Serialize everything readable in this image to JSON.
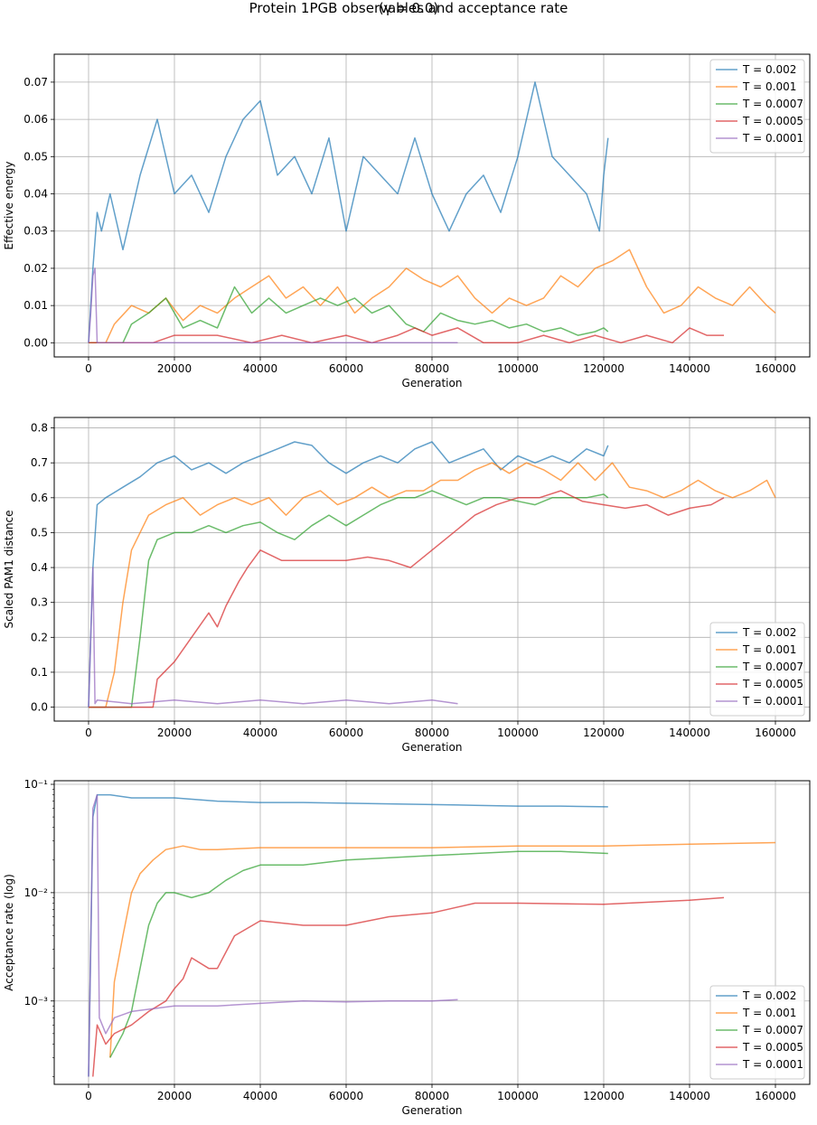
{
  "figure": {
    "title": "Protein 1PGB observables and acceptance rate",
    "subtitle": "(γ = 0.0)"
  },
  "colors": {
    "T = 0.002": "#1f77b4",
    "T = 0.001": "#ff7f0e",
    "T = 0.0007": "#2ca02c",
    "T = 0.0005": "#d62728",
    "T = 0.0001": "#9467bd"
  },
  "chart_data": [
    {
      "type": "line",
      "title": "",
      "xlabel": "Generation",
      "ylabel": "Effective energy",
      "xlim": [
        -8000,
        168000
      ],
      "ylim": [
        -0.0038,
        0.0775
      ],
      "yscale": "linear",
      "grid": true,
      "legend": "top-right",
      "x_ticks": [
        "0",
        "20000",
        "40000",
        "60000",
        "80000",
        "100000",
        "120000",
        "140000",
        "160000"
      ],
      "y_ticks": [
        "0.00",
        "0.01",
        "0.02",
        "0.03",
        "0.04",
        "0.05",
        "0.06",
        "0.07"
      ],
      "series": [
        {
          "name": "T = 0.002",
          "x": [
            0,
            1000,
            2000,
            3000,
            5000,
            8000,
            12000,
            16000,
            20000,
            24000,
            28000,
            32000,
            36000,
            40000,
            44000,
            48000,
            52000,
            56000,
            60000,
            64000,
            68000,
            72000,
            76000,
            80000,
            84000,
            88000,
            92000,
            96000,
            100000,
            104000,
            108000,
            112000,
            116000,
            119000,
            120000,
            121000
          ],
          "y": [
            0.0,
            0.02,
            0.035,
            0.03,
            0.04,
            0.025,
            0.045,
            0.06,
            0.04,
            0.045,
            0.035,
            0.05,
            0.06,
            0.065,
            0.045,
            0.05,
            0.04,
            0.055,
            0.03,
            0.05,
            0.045,
            0.04,
            0.055,
            0.04,
            0.03,
            0.04,
            0.045,
            0.035,
            0.05,
            0.07,
            0.05,
            0.045,
            0.04,
            0.03,
            0.045,
            0.055
          ]
        },
        {
          "name": "T = 0.001",
          "x": [
            0,
            4000,
            6000,
            10000,
            14000,
            18000,
            22000,
            26000,
            30000,
            34000,
            38000,
            42000,
            46000,
            50000,
            54000,
            58000,
            62000,
            66000,
            70000,
            74000,
            78000,
            82000,
            86000,
            90000,
            94000,
            98000,
            102000,
            106000,
            110000,
            114000,
            118000,
            122000,
            126000,
            130000,
            134000,
            138000,
            142000,
            146000,
            150000,
            154000,
            158000,
            160000
          ],
          "y": [
            0.0,
            0.0,
            0.005,
            0.01,
            0.008,
            0.012,
            0.006,
            0.01,
            0.008,
            0.012,
            0.015,
            0.018,
            0.012,
            0.015,
            0.01,
            0.015,
            0.008,
            0.012,
            0.015,
            0.02,
            0.017,
            0.015,
            0.018,
            0.012,
            0.008,
            0.012,
            0.01,
            0.012,
            0.018,
            0.015,
            0.02,
            0.022,
            0.025,
            0.015,
            0.008,
            0.01,
            0.015,
            0.012,
            0.01,
            0.015,
            0.01,
            0.008
          ]
        },
        {
          "name": "T = 0.0007",
          "x": [
            0,
            8000,
            10000,
            14000,
            18000,
            22000,
            26000,
            30000,
            34000,
            38000,
            42000,
            46000,
            50000,
            54000,
            58000,
            62000,
            66000,
            70000,
            74000,
            78000,
            82000,
            86000,
            90000,
            94000,
            98000,
            102000,
            106000,
            110000,
            114000,
            118000,
            120000,
            121000
          ],
          "y": [
            0.0,
            0.0,
            0.005,
            0.008,
            0.012,
            0.004,
            0.006,
            0.004,
            0.015,
            0.008,
            0.012,
            0.008,
            0.01,
            0.012,
            0.01,
            0.012,
            0.008,
            0.01,
            0.005,
            0.003,
            0.008,
            0.006,
            0.005,
            0.006,
            0.004,
            0.005,
            0.003,
            0.004,
            0.002,
            0.003,
            0.004,
            0.003
          ]
        },
        {
          "name": "T = 0.0005",
          "x": [
            0,
            15000,
            20000,
            30000,
            38000,
            45000,
            52000,
            60000,
            66000,
            72000,
            76000,
            80000,
            86000,
            92000,
            100000,
            106000,
            112000,
            118000,
            124000,
            130000,
            136000,
            140000,
            144000,
            148000
          ],
          "y": [
            0.0,
            0.0,
            0.002,
            0.002,
            0.0,
            0.002,
            0.0,
            0.002,
            0.0,
            0.002,
            0.004,
            0.002,
            0.004,
            0.0,
            0.0,
            0.002,
            0.0,
            0.002,
            0.0,
            0.002,
            0.0,
            0.004,
            0.002,
            0.002
          ]
        },
        {
          "name": "T = 0.0001",
          "x": [
            0,
            500,
            1000,
            1500,
            2000,
            4000,
            86000
          ],
          "y": [
            0.0,
            0.008,
            0.018,
            0.02,
            0.0,
            0.0,
            0.0
          ]
        }
      ]
    },
    {
      "type": "line",
      "title": "",
      "xlabel": "Generation",
      "ylabel": "Scaled PAM1 distance",
      "xlim": [
        -8000,
        168000
      ],
      "ylim": [
        -0.04,
        0.83
      ],
      "yscale": "linear",
      "grid": true,
      "legend": "bottom-right",
      "x_ticks": [
        "0",
        "20000",
        "40000",
        "60000",
        "80000",
        "100000",
        "120000",
        "140000",
        "160000"
      ],
      "y_ticks": [
        "0.0",
        "0.1",
        "0.2",
        "0.3",
        "0.4",
        "0.5",
        "0.6",
        "0.7",
        "0.8"
      ],
      "series": [
        {
          "name": "T = 0.002",
          "x": [
            0,
            1000,
            2000,
            4000,
            8000,
            12000,
            16000,
            20000,
            24000,
            28000,
            32000,
            36000,
            40000,
            44000,
            48000,
            52000,
            56000,
            60000,
            64000,
            68000,
            72000,
            76000,
            80000,
            84000,
            88000,
            92000,
            96000,
            100000,
            104000,
            108000,
            112000,
            116000,
            120000,
            121000
          ],
          "y": [
            0.0,
            0.4,
            0.58,
            0.6,
            0.63,
            0.66,
            0.7,
            0.72,
            0.68,
            0.7,
            0.67,
            0.7,
            0.72,
            0.74,
            0.76,
            0.75,
            0.7,
            0.67,
            0.7,
            0.72,
            0.7,
            0.74,
            0.76,
            0.7,
            0.72,
            0.74,
            0.68,
            0.72,
            0.7,
            0.72,
            0.7,
            0.74,
            0.72,
            0.75
          ]
        },
        {
          "name": "T = 0.001",
          "x": [
            0,
            4000,
            6000,
            8000,
            10000,
            12000,
            14000,
            18000,
            22000,
            26000,
            30000,
            34000,
            38000,
            42000,
            46000,
            50000,
            54000,
            58000,
            62000,
            66000,
            70000,
            74000,
            78000,
            82000,
            86000,
            90000,
            94000,
            98000,
            102000,
            106000,
            110000,
            114000,
            118000,
            122000,
            126000,
            130000,
            134000,
            138000,
            142000,
            146000,
            150000,
            154000,
            158000,
            160000
          ],
          "y": [
            0.0,
            0.0,
            0.1,
            0.3,
            0.45,
            0.5,
            0.55,
            0.58,
            0.6,
            0.55,
            0.58,
            0.6,
            0.58,
            0.6,
            0.55,
            0.6,
            0.62,
            0.58,
            0.6,
            0.63,
            0.6,
            0.62,
            0.62,
            0.65,
            0.65,
            0.68,
            0.7,
            0.67,
            0.7,
            0.68,
            0.65,
            0.7,
            0.65,
            0.7,
            0.63,
            0.62,
            0.6,
            0.62,
            0.65,
            0.62,
            0.6,
            0.62,
            0.65,
            0.6
          ]
        },
        {
          "name": "T = 0.0007",
          "x": [
            0,
            10000,
            12000,
            14000,
            16000,
            20000,
            24000,
            28000,
            32000,
            36000,
            40000,
            44000,
            48000,
            52000,
            56000,
            60000,
            64000,
            68000,
            72000,
            76000,
            80000,
            84000,
            88000,
            92000,
            96000,
            100000,
            104000,
            108000,
            112000,
            116000,
            120000,
            121000
          ],
          "y": [
            0.0,
            0.0,
            0.2,
            0.42,
            0.48,
            0.5,
            0.5,
            0.52,
            0.5,
            0.52,
            0.53,
            0.5,
            0.48,
            0.52,
            0.55,
            0.52,
            0.55,
            0.58,
            0.6,
            0.6,
            0.62,
            0.6,
            0.58,
            0.6,
            0.6,
            0.59,
            0.58,
            0.6,
            0.6,
            0.6,
            0.61,
            0.6
          ]
        },
        {
          "name": "T = 0.0005",
          "x": [
            0,
            15000,
            16000,
            20000,
            24000,
            28000,
            30000,
            32000,
            35000,
            37000,
            40000,
            45000,
            50000,
            55000,
            60000,
            65000,
            70000,
            75000,
            80000,
            85000,
            90000,
            95000,
            100000,
            105000,
            110000,
            115000,
            120000,
            125000,
            130000,
            135000,
            140000,
            145000,
            148000
          ],
          "y": [
            0.0,
            0.0,
            0.08,
            0.13,
            0.2,
            0.27,
            0.23,
            0.29,
            0.36,
            0.4,
            0.45,
            0.42,
            0.42,
            0.42,
            0.42,
            0.43,
            0.42,
            0.4,
            0.45,
            0.5,
            0.55,
            0.58,
            0.6,
            0.6,
            0.62,
            0.59,
            0.58,
            0.57,
            0.58,
            0.55,
            0.57,
            0.58,
            0.6
          ]
        },
        {
          "name": "T = 0.0001",
          "x": [
            0,
            500,
            1000,
            1500,
            2000,
            10000,
            20000,
            30000,
            40000,
            50000,
            60000,
            70000,
            80000,
            86000
          ],
          "y": [
            0.0,
            0.2,
            0.4,
            0.01,
            0.02,
            0.01,
            0.02,
            0.01,
            0.02,
            0.01,
            0.02,
            0.01,
            0.02,
            0.01
          ]
        }
      ]
    },
    {
      "type": "line",
      "title": "",
      "xlabel": "Generation",
      "ylabel": "Acceptance rate (log)",
      "xlim": [
        -8000,
        168000
      ],
      "ylim": [
        0.00017,
        0.108
      ],
      "yscale": "log",
      "grid": true,
      "legend": "bottom-right",
      "x_ticks": [
        "0",
        "20000",
        "40000",
        "60000",
        "80000",
        "100000",
        "120000",
        "140000",
        "160000"
      ],
      "y_ticks": [
        "10⁻¹",
        "10⁻²",
        "10⁻³"
      ],
      "series": [
        {
          "name": "T = 0.002",
          "x": [
            0,
            1000,
            2000,
            5000,
            10000,
            20000,
            30000,
            40000,
            50000,
            60000,
            70000,
            80000,
            90000,
            100000,
            110000,
            121000
          ],
          "y": [
            0.0002,
            0.05,
            0.08,
            0.08,
            0.075,
            0.075,
            0.07,
            0.068,
            0.068,
            0.067,
            0.066,
            0.065,
            0.064,
            0.063,
            0.063,
            0.062
          ]
        },
        {
          "name": "T = 0.001",
          "x": [
            5000,
            6000,
            8000,
            10000,
            12000,
            15000,
            18000,
            22000,
            26000,
            30000,
            40000,
            50000,
            60000,
            80000,
            100000,
            120000,
            140000,
            160000
          ],
          "y": [
            0.0003,
            0.0015,
            0.004,
            0.01,
            0.015,
            0.02,
            0.025,
            0.027,
            0.025,
            0.025,
            0.026,
            0.026,
            0.026,
            0.026,
            0.027,
            0.027,
            0.028,
            0.029
          ]
        },
        {
          "name": "T = 0.0007",
          "x": [
            5000,
            8000,
            10000,
            12000,
            14000,
            16000,
            18000,
            20000,
            24000,
            28000,
            32000,
            36000,
            40000,
            50000,
            60000,
            80000,
            100000,
            110000,
            121000
          ],
          "y": [
            0.0003,
            0.0005,
            0.0008,
            0.002,
            0.005,
            0.008,
            0.01,
            0.01,
            0.009,
            0.01,
            0.013,
            0.016,
            0.018,
            0.018,
            0.02,
            0.022,
            0.024,
            0.024,
            0.023
          ]
        },
        {
          "name": "T = 0.0005",
          "x": [
            1000,
            2000,
            4000,
            6000,
            10000,
            14000,
            18000,
            20000,
            22000,
            24000,
            28000,
            30000,
            34000,
            40000,
            50000,
            60000,
            70000,
            80000,
            90000,
            100000,
            120000,
            140000,
            148000
          ],
          "y": [
            0.0002,
            0.0006,
            0.0004,
            0.0005,
            0.0006,
            0.0008,
            0.001,
            0.0013,
            0.0016,
            0.0025,
            0.002,
            0.002,
            0.004,
            0.0055,
            0.005,
            0.005,
            0.006,
            0.0065,
            0.008,
            0.008,
            0.0078,
            0.0085,
            0.009
          ]
        },
        {
          "name": "T = 0.0001",
          "x": [
            0,
            1000,
            2000,
            2500,
            4000,
            6000,
            10000,
            20000,
            30000,
            40000,
            50000,
            60000,
            70000,
            80000,
            86000
          ],
          "y": [
            0.0002,
            0.06,
            0.08,
            0.0007,
            0.0005,
            0.0007,
            0.0008,
            0.0009,
            0.0009,
            0.00095,
            0.001,
            0.00098,
            0.001,
            0.001,
            0.00103
          ]
        }
      ]
    }
  ]
}
